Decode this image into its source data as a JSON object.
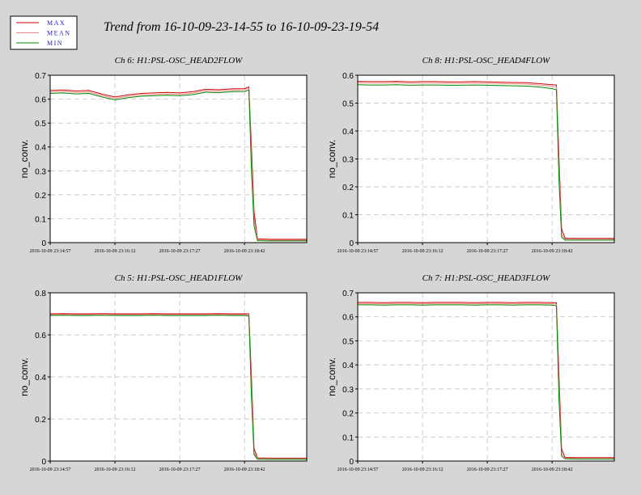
{
  "title": "Trend from 16-10-09-23-14-55 to 16-10-09-23-19-54",
  "chart_data": [
    {
      "type": "line",
      "title": "Ch 6: H1:PSL-OSC_HEAD2FLOW",
      "ylabel": "no_conv.",
      "x": [
        "2016-10-09 23:14:57",
        "2016-10-09 23:15:12",
        "2016-10-09 23:15:27",
        "2016-10-09 23:15:42",
        "2016-10-09 23:15:57",
        "2016-10-09 23:16:12",
        "2016-10-09 23:16:27",
        "2016-10-09 23:16:42",
        "2016-10-09 23:16:57",
        "2016-10-09 23:17:12",
        "2016-10-09 23:17:27",
        "2016-10-09 23:17:42",
        "2016-10-09 23:17:57",
        "2016-10-09 23:18:12",
        "2016-10-09 23:18:27",
        "2016-10-09 23:18:42",
        "2016-10-09 23:18:47",
        "2016-10-09 23:18:50",
        "2016-10-09 23:18:53",
        "2016-10-09 23:18:57",
        "2016-10-09 23:19:12",
        "2016-10-09 23:19:27",
        "2016-10-09 23:19:42",
        "2016-10-09 23:19:54"
      ],
      "series": [
        {
          "name": "MAX",
          "color": "#cc0000",
          "values": [
            0.636,
            0.638,
            0.634,
            0.636,
            0.621,
            0.609,
            0.618,
            0.624,
            0.626,
            0.628,
            0.626,
            0.631,
            0.641,
            0.639,
            0.643,
            0.644,
            0.651,
            0.4,
            0.13,
            0.016,
            0.014,
            0.014,
            0.014,
            0.014
          ]
        },
        {
          "name": "MEAN",
          "color": "#f08a8a",
          "values": [
            0.63,
            0.632,
            0.628,
            0.63,
            0.615,
            0.603,
            0.612,
            0.618,
            0.62,
            0.622,
            0.62,
            0.625,
            0.635,
            0.633,
            0.637,
            0.638,
            0.645,
            0.35,
            0.1,
            0.012,
            0.01,
            0.01,
            0.01,
            0.01
          ]
        },
        {
          "name": "MIN",
          "color": "#008800",
          "values": [
            0.624,
            0.626,
            0.622,
            0.624,
            0.609,
            0.597,
            0.606,
            0.612,
            0.614,
            0.616,
            0.614,
            0.619,
            0.629,
            0.627,
            0.631,
            0.632,
            0.638,
            0.3,
            0.07,
            0.008,
            0.007,
            0.007,
            0.007,
            0.007
          ]
        }
      ],
      "xlim": [
        "2016-10-09 23:14:57",
        "2016-10-09 23:19:54"
      ],
      "xticks": [
        "2016-10-09 23:14:57",
        "2016-10-09 23:16:12",
        "2016-10-09 23:17:27",
        "2016-10-09 23:18:42"
      ],
      "ylim": [
        0,
        0.7
      ],
      "yticks": [
        0,
        0.1,
        0.2,
        0.3,
        0.4,
        0.5,
        0.6,
        0.7
      ],
      "grid": true
    },
    {
      "type": "line",
      "title": "Ch 8: H1:PSL-OSC_HEAD4FLOW",
      "ylabel": "no_conv.",
      "x": [
        "2016-10-09 23:14:57",
        "2016-10-09 23:15:12",
        "2016-10-09 23:15:27",
        "2016-10-09 23:15:42",
        "2016-10-09 23:15:57",
        "2016-10-09 23:16:12",
        "2016-10-09 23:16:27",
        "2016-10-09 23:16:42",
        "2016-10-09 23:16:57",
        "2016-10-09 23:17:12",
        "2016-10-09 23:17:27",
        "2016-10-09 23:17:42",
        "2016-10-09 23:17:57",
        "2016-10-09 23:18:12",
        "2016-10-09 23:18:27",
        "2016-10-09 23:18:42",
        "2016-10-09 23:18:47",
        "2016-10-09 23:18:50",
        "2016-10-09 23:18:53",
        "2016-10-09 23:18:57",
        "2016-10-09 23:19:12",
        "2016-10-09 23:19:27",
        "2016-10-09 23:19:42",
        "2016-10-09 23:19:54"
      ],
      "series": [
        {
          "name": "MAX",
          "color": "#cc0000",
          "values": [
            0.578,
            0.577,
            0.577,
            0.578,
            0.576,
            0.577,
            0.577,
            0.576,
            0.576,
            0.577,
            0.576,
            0.575,
            0.574,
            0.573,
            0.57,
            0.566,
            0.565,
            0.3,
            0.05,
            0.016,
            0.015,
            0.015,
            0.015,
            0.015
          ]
        },
        {
          "name": "MEAN",
          "color": "#f08a8a",
          "values": [
            0.573,
            0.572,
            0.572,
            0.573,
            0.571,
            0.572,
            0.572,
            0.571,
            0.571,
            0.572,
            0.571,
            0.57,
            0.569,
            0.568,
            0.565,
            0.56,
            0.557,
            0.26,
            0.03,
            0.012,
            0.012,
            0.012,
            0.012,
            0.012
          ]
        },
        {
          "name": "MIN",
          "color": "#008800",
          "values": [
            0.566,
            0.565,
            0.565,
            0.566,
            0.564,
            0.565,
            0.565,
            0.564,
            0.564,
            0.565,
            0.564,
            0.563,
            0.562,
            0.561,
            0.558,
            0.552,
            0.548,
            0.22,
            0.02,
            0.009,
            0.009,
            0.009,
            0.009,
            0.009
          ]
        }
      ],
      "xlim": [
        "2016-10-09 23:14:57",
        "2016-10-09 23:19:54"
      ],
      "xticks": [
        "2016-10-09 23:14:57",
        "2016-10-09 23:16:12",
        "2016-10-09 23:17:27",
        "2016-10-09 23:18:42"
      ],
      "ylim": [
        0,
        0.6
      ],
      "yticks": [
        0,
        0.1,
        0.2,
        0.3,
        0.4,
        0.5,
        0.6
      ],
      "grid": true
    },
    {
      "type": "line",
      "title": "Ch 5: H1:PSL-OSC_HEAD1FLOW",
      "ylabel": "no_conv.",
      "x": [
        "2016-10-09 23:14:57",
        "2016-10-09 23:15:12",
        "2016-10-09 23:15:27",
        "2016-10-09 23:15:42",
        "2016-10-09 23:15:57",
        "2016-10-09 23:16:12",
        "2016-10-09 23:16:27",
        "2016-10-09 23:16:42",
        "2016-10-09 23:16:57",
        "2016-10-09 23:17:12",
        "2016-10-09 23:17:27",
        "2016-10-09 23:17:42",
        "2016-10-09 23:17:57",
        "2016-10-09 23:18:12",
        "2016-10-09 23:18:27",
        "2016-10-09 23:18:42",
        "2016-10-09 23:18:47",
        "2016-10-09 23:18:50",
        "2016-10-09 23:18:53",
        "2016-10-09 23:18:57",
        "2016-10-09 23:19:12",
        "2016-10-09 23:19:27",
        "2016-10-09 23:19:42",
        "2016-10-09 23:19:54"
      ],
      "series": [
        {
          "name": "MAX",
          "color": "#cc0000",
          "values": [
            0.7,
            0.701,
            0.7,
            0.7,
            0.701,
            0.7,
            0.7,
            0.7,
            0.701,
            0.7,
            0.7,
            0.7,
            0.7,
            0.701,
            0.7,
            0.7,
            0.7,
            0.4,
            0.06,
            0.015,
            0.014,
            0.014,
            0.014,
            0.014
          ]
        },
        {
          "name": "MEAN",
          "color": "#f08a8a",
          "values": [
            0.696,
            0.697,
            0.696,
            0.696,
            0.697,
            0.696,
            0.696,
            0.696,
            0.697,
            0.696,
            0.696,
            0.696,
            0.696,
            0.697,
            0.696,
            0.696,
            0.695,
            0.35,
            0.04,
            0.012,
            0.011,
            0.011,
            0.011,
            0.011
          ]
        },
        {
          "name": "MIN",
          "color": "#008800",
          "values": [
            0.692,
            0.693,
            0.692,
            0.692,
            0.693,
            0.692,
            0.692,
            0.692,
            0.693,
            0.692,
            0.692,
            0.692,
            0.692,
            0.693,
            0.692,
            0.692,
            0.69,
            0.3,
            0.03,
            0.009,
            0.008,
            0.008,
            0.008,
            0.008
          ]
        }
      ],
      "xlim": [
        "2016-10-09 23:14:57",
        "2016-10-09 23:19:54"
      ],
      "xticks": [
        "2016-10-09 23:14:57",
        "2016-10-09 23:16:12",
        "2016-10-09 23:17:27",
        "2016-10-09 23:18:42"
      ],
      "ylim": [
        0,
        0.8
      ],
      "yticks": [
        0,
        0.2,
        0.4,
        0.6,
        0.8
      ],
      "grid": true
    },
    {
      "type": "line",
      "title": "Ch 7: H1:PSL-OSC_HEAD3FLOW",
      "ylabel": "no_conv.",
      "x": [
        "2016-10-09 23:14:57",
        "2016-10-09 23:15:12",
        "2016-10-09 23:15:27",
        "2016-10-09 23:15:42",
        "2016-10-09 23:15:57",
        "2016-10-09 23:16:12",
        "2016-10-09 23:16:27",
        "2016-10-09 23:16:42",
        "2016-10-09 23:16:57",
        "2016-10-09 23:17:12",
        "2016-10-09 23:17:27",
        "2016-10-09 23:17:42",
        "2016-10-09 23:17:57",
        "2016-10-09 23:18:12",
        "2016-10-09 23:18:27",
        "2016-10-09 23:18:42",
        "2016-10-09 23:18:47",
        "2016-10-09 23:18:50",
        "2016-10-09 23:18:53",
        "2016-10-09 23:18:57",
        "2016-10-09 23:19:12",
        "2016-10-09 23:19:27",
        "2016-10-09 23:19:42",
        "2016-10-09 23:19:54"
      ],
      "series": [
        {
          "name": "MAX",
          "color": "#cc0000",
          "values": [
            0.66,
            0.66,
            0.659,
            0.66,
            0.66,
            0.659,
            0.66,
            0.66,
            0.66,
            0.659,
            0.66,
            0.66,
            0.659,
            0.66,
            0.66,
            0.659,
            0.658,
            0.35,
            0.05,
            0.015,
            0.014,
            0.014,
            0.014,
            0.014
          ]
        },
        {
          "name": "MEAN",
          "color": "#f08a8a",
          "values": [
            0.655,
            0.655,
            0.654,
            0.655,
            0.655,
            0.654,
            0.655,
            0.655,
            0.655,
            0.654,
            0.655,
            0.655,
            0.654,
            0.655,
            0.655,
            0.654,
            0.652,
            0.3,
            0.03,
            0.012,
            0.011,
            0.011,
            0.011,
            0.011
          ]
        },
        {
          "name": "MIN",
          "color": "#008800",
          "values": [
            0.65,
            0.65,
            0.649,
            0.65,
            0.65,
            0.649,
            0.65,
            0.65,
            0.65,
            0.649,
            0.65,
            0.65,
            0.649,
            0.65,
            0.65,
            0.649,
            0.646,
            0.25,
            0.02,
            0.009,
            0.008,
            0.008,
            0.008,
            0.008
          ]
        }
      ],
      "xlim": [
        "2016-10-09 23:14:57",
        "2016-10-09 23:19:54"
      ],
      "xticks": [
        "2016-10-09 23:14:57",
        "2016-10-09 23:16:12",
        "2016-10-09 23:17:27",
        "2016-10-09 23:18:42"
      ],
      "ylim": [
        0,
        0.7
      ],
      "yticks": [
        0,
        0.1,
        0.2,
        0.3,
        0.4,
        0.5,
        0.6,
        0.7
      ],
      "grid": true
    }
  ]
}
